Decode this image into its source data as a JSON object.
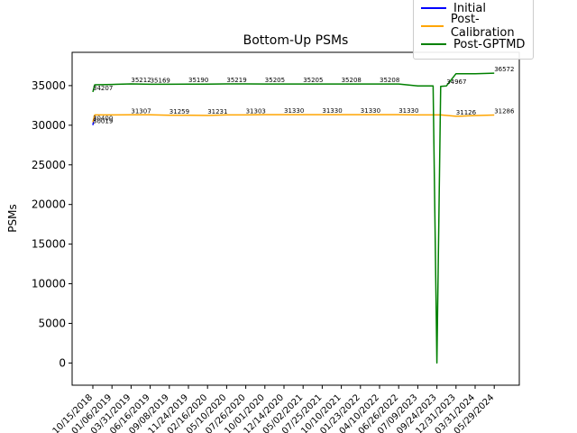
{
  "chart_data": {
    "type": "line",
    "title": "Bottom-Up PSMs",
    "xlabel": "",
    "ylabel": "PSMs",
    "ylim": [
      -2800,
      39200
    ],
    "yticks": [
      0,
      5000,
      10000,
      15000,
      20000,
      25000,
      30000,
      35000
    ],
    "categories": [
      "10/15/2018",
      "01/06/2019",
      "03/31/2019",
      "06/16/2019",
      "09/08/2019",
      "11/24/2019",
      "02/16/2020",
      "05/10/2020",
      "07/26/2020",
      "10/01/2020",
      "12/14/2020",
      "05/02/2021",
      "07/25/2021",
      "10/10/2021",
      "01/23/2022",
      "04/10/2022",
      "06/26/2022",
      "07/09/2023",
      "09/24/2023",
      "12/31/2023",
      "03/31/2024",
      "05/29/2024"
    ],
    "legend_position": "upper-right",
    "grid": false,
    "series": [
      {
        "name": "Initial",
        "color": "#0000ff",
        "points": [
          [
            0,
            30019
          ],
          [
            0.1,
            31200
          ]
        ]
      },
      {
        "name": "Post-Calibration",
        "color": "#ffa500",
        "points": [
          [
            0,
            30400
          ],
          [
            0.1,
            31300
          ],
          [
            2,
            31307
          ],
          [
            3,
            31307
          ],
          [
            4,
            31259
          ],
          [
            5,
            31259
          ],
          [
            6,
            31231
          ],
          [
            7,
            31303
          ],
          [
            8,
            31303
          ],
          [
            9,
            31330
          ],
          [
            10,
            31330
          ],
          [
            11,
            31330
          ],
          [
            12,
            31330
          ],
          [
            13,
            31330
          ],
          [
            14,
            31330
          ],
          [
            15,
            31330
          ],
          [
            16,
            31330
          ],
          [
            17,
            31300
          ],
          [
            17.8,
            31300
          ],
          [
            18.2,
            31300
          ],
          [
            19,
            31126
          ],
          [
            20,
            31226
          ],
          [
            21,
            31286
          ]
        ]
      },
      {
        "name": "Post-GPTMD",
        "color": "#008000",
        "points": [
          [
            0,
            34207
          ],
          [
            0.1,
            35100
          ],
          [
            1,
            35150
          ],
          [
            2,
            35212
          ],
          [
            3,
            35169
          ],
          [
            4,
            35169
          ],
          [
            5,
            35190
          ],
          [
            6,
            35190
          ],
          [
            7,
            35219
          ],
          [
            8,
            35219
          ],
          [
            9,
            35205
          ],
          [
            10,
            35205
          ],
          [
            11,
            35205
          ],
          [
            12,
            35205
          ],
          [
            13,
            35208
          ],
          [
            14,
            35208
          ],
          [
            15,
            35208
          ],
          [
            16,
            35208
          ],
          [
            17,
            34950
          ],
          [
            17.8,
            34950
          ],
          [
            18.0,
            0
          ],
          [
            18.2,
            34900
          ],
          [
            18.5,
            34967
          ],
          [
            19,
            36500
          ],
          [
            20,
            36500
          ],
          [
            21,
            36572
          ]
        ]
      }
    ],
    "annotations": [
      {
        "x": 0,
        "y": 34207,
        "text": "34207",
        "color": "#000000"
      },
      {
        "x": 0,
        "y": 30400,
        "text": "30400",
        "color": "#000000"
      },
      {
        "x": 0,
        "y": 30019,
        "text": "30019",
        "color": "#000000"
      },
      {
        "x": 2,
        "y": 35212,
        "text": "35212",
        "color": "#000000"
      },
      {
        "x": 3,
        "y": 35169,
        "text": "35169",
        "color": "#000000"
      },
      {
        "x": 5,
        "y": 35190,
        "text": "35190",
        "color": "#000000"
      },
      {
        "x": 7,
        "y": 35219,
        "text": "35219",
        "color": "#000000"
      },
      {
        "x": 9,
        "y": 35205,
        "text": "35205",
        "color": "#000000"
      },
      {
        "x": 11,
        "y": 35205,
        "text": "35205",
        "color": "#000000"
      },
      {
        "x": 13,
        "y": 35208,
        "text": "35208",
        "color": "#000000"
      },
      {
        "x": 15,
        "y": 35208,
        "text": "35208",
        "color": "#000000"
      },
      {
        "x": 18.5,
        "y": 34967,
        "text": "34967",
        "color": "#000000"
      },
      {
        "x": 21,
        "y": 36572,
        "text": "36572",
        "color": "#000000"
      },
      {
        "x": 2,
        "y": 31307,
        "text": "31307",
        "color": "#000000"
      },
      {
        "x": 4,
        "y": 31259,
        "text": "31259",
        "color": "#000000"
      },
      {
        "x": 6,
        "y": 31231,
        "text": "31231",
        "color": "#000000"
      },
      {
        "x": 8,
        "y": 31303,
        "text": "31303",
        "color": "#000000"
      },
      {
        "x": 10,
        "y": 31330,
        "text": "31330",
        "color": "#000000"
      },
      {
        "x": 12,
        "y": 31330,
        "text": "31330",
        "color": "#000000"
      },
      {
        "x": 14,
        "y": 31330,
        "text": "31330",
        "color": "#000000"
      },
      {
        "x": 16,
        "y": 31330,
        "text": "31330",
        "color": "#000000"
      },
      {
        "x": 19,
        "y": 31126,
        "text": "31126",
        "color": "#000000"
      },
      {
        "x": 21,
        "y": 31286,
        "text": "31286",
        "color": "#000000"
      }
    ]
  }
}
